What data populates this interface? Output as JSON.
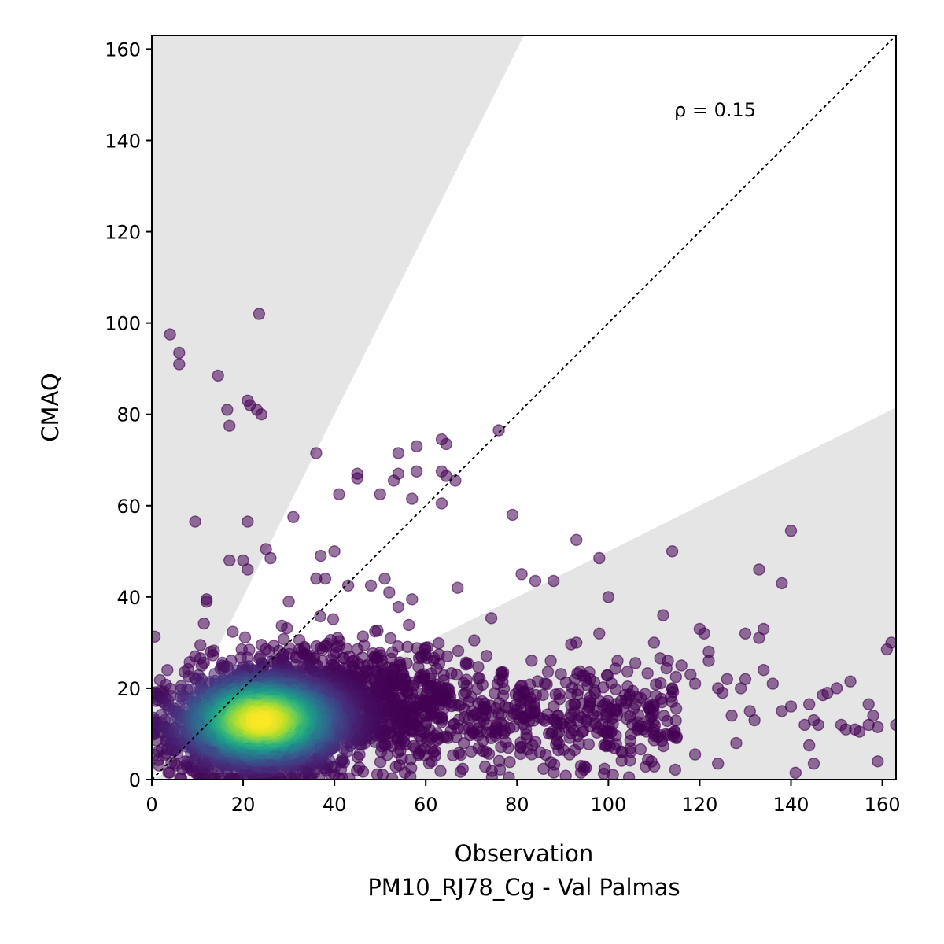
{
  "chart_data": {
    "type": "scatter",
    "title": "",
    "xlabel": "Observation",
    "xlabel_sub": "PM10_RJ78_Cg - Val Palmas",
    "ylabel": "CMAQ",
    "xlim": [
      0,
      163
    ],
    "ylim": [
      0,
      163
    ],
    "xticks": [
      "0",
      "20",
      "40",
      "60",
      "80",
      "100",
      "120",
      "140",
      "160"
    ],
    "yticks": [
      "0",
      "20",
      "40",
      "60",
      "80",
      "100",
      "120",
      "140",
      "160"
    ],
    "annotation": "ρ = 0.15",
    "reference_line": "1:1 dotted",
    "factor_of_two_band": {
      "upper_slope": 2.0,
      "lower_slope": 0.5
    },
    "colormap": "viridis, colored by point density",
    "grid": false,
    "colors": {
      "band": "#e5e5e5",
      "low_density": "#440154",
      "high_density": "#fde725"
    },
    "outlier_points": [
      [
        4,
        97.5
      ],
      [
        6,
        93.5
      ],
      [
        6,
        91
      ],
      [
        23.5,
        102
      ],
      [
        14.5,
        88.5
      ],
      [
        16.5,
        81
      ],
      [
        17,
        77.5
      ],
      [
        21,
        83
      ],
      [
        21.5,
        82
      ],
      [
        23,
        81
      ],
      [
        24,
        80
      ],
      [
        9.5,
        56.5
      ],
      [
        21,
        56.5
      ],
      [
        36,
        71.5
      ],
      [
        31,
        57.5
      ],
      [
        25,
        50.5
      ],
      [
        26,
        48.5
      ],
      [
        17,
        48
      ],
      [
        20,
        48
      ],
      [
        21,
        46
      ],
      [
        37,
        49
      ],
      [
        40,
        50
      ],
      [
        41,
        62.5
      ],
      [
        45,
        67
      ],
      [
        45,
        66
      ],
      [
        50,
        62.5
      ],
      [
        53,
        65.5
      ],
      [
        54,
        67
      ],
      [
        54,
        71.5
      ],
      [
        57,
        61.5
      ],
      [
        58,
        73
      ],
      [
        58,
        67.5
      ],
      [
        63.5,
        74.5
      ],
      [
        64.5,
        73.5
      ],
      [
        63.5,
        67.5
      ],
      [
        64.5,
        66.5
      ],
      [
        66.5,
        65.5
      ],
      [
        63.5,
        60.5
      ],
      [
        76,
        76.5
      ],
      [
        79,
        58
      ],
      [
        67,
        42
      ],
      [
        38,
        44
      ],
      [
        43,
        42.5
      ],
      [
        48,
        42.5
      ],
      [
        51,
        44
      ],
      [
        52,
        41
      ],
      [
        57,
        39.5
      ],
      [
        81,
        45
      ],
      [
        84,
        43.5
      ],
      [
        88,
        43.5
      ],
      [
        93,
        52.5
      ],
      [
        98,
        48.5
      ],
      [
        100,
        40
      ],
      [
        114,
        50
      ],
      [
        133,
        46
      ],
      [
        138,
        43
      ],
      [
        140,
        54.5
      ],
      [
        12,
        39
      ],
      [
        12,
        39.5
      ],
      [
        30,
        39
      ],
      [
        36,
        44
      ],
      [
        112,
        36
      ],
      [
        110,
        30
      ],
      [
        120,
        33
      ],
      [
        121,
        32
      ],
      [
        122,
        28
      ],
      [
        122,
        26
      ],
      [
        126,
        22
      ],
      [
        130,
        32
      ],
      [
        133,
        31
      ],
      [
        134,
        33
      ],
      [
        134,
        24
      ],
      [
        136,
        21
      ],
      [
        138,
        15
      ],
      [
        140,
        16
      ],
      [
        144,
        16.5
      ],
      [
        141,
        1.5
      ],
      [
        143,
        12
      ],
      [
        145,
        13
      ],
      [
        146,
        12
      ],
      [
        147,
        18.5
      ],
      [
        148,
        19
      ],
      [
        150,
        20
      ],
      [
        151,
        12
      ],
      [
        152,
        11
      ],
      [
        153,
        21.5
      ],
      [
        154,
        11
      ],
      [
        155,
        10.5
      ],
      [
        157,
        12
      ],
      [
        157,
        16.5
      ],
      [
        158,
        14
      ],
      [
        159,
        11.5
      ],
      [
        159,
        4
      ],
      [
        161,
        28.5
      ],
      [
        162,
        30
      ],
      [
        163,
        12
      ],
      [
        114,
        20
      ],
      [
        116,
        25
      ],
      [
        118,
        23
      ],
      [
        119,
        21
      ],
      [
        124,
        20
      ],
      [
        125,
        19
      ],
      [
        127,
        14
      ],
      [
        128,
        8
      ],
      [
        129,
        20
      ],
      [
        130,
        22
      ],
      [
        131,
        15
      ],
      [
        132,
        13
      ],
      [
        124,
        3.5
      ],
      [
        119,
        5.5
      ],
      [
        145,
        3.5
      ],
      [
        144,
        7.5
      ],
      [
        101,
        1
      ],
      [
        94,
        3
      ],
      [
        94,
        1.5
      ],
      [
        93,
        30
      ],
      [
        98,
        32
      ],
      [
        96,
        22
      ],
      [
        102,
        26
      ]
    ]
  }
}
